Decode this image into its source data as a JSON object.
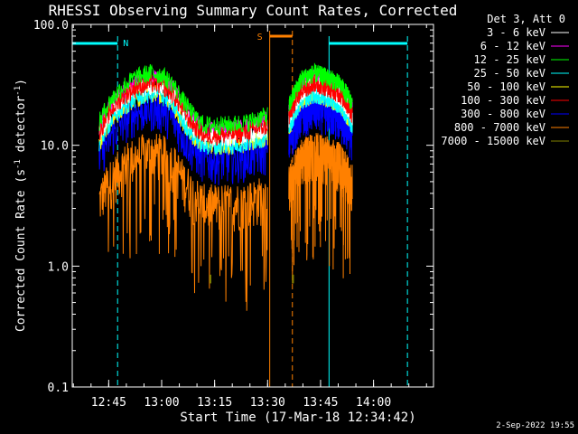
{
  "chart_data": {
    "type": "line",
    "title": "RHESSI Observing Summary Count Rates, Corrected",
    "xlabel": "Start Time (17-Mar-18 12:34:42)",
    "ylabel_main": "Corrected Count Rate (s",
    "ylabel_sup1": "-1",
    "ylabel_mid": " detector",
    "ylabel_sup2": "-1",
    "ylabel_end": ")",
    "yscale": "log",
    "ylim": [
      0.1,
      100
    ],
    "xlim": [
      12.578,
      14.283
    ],
    "yticks": [
      {
        "value": 100,
        "label": "100.0"
      },
      {
        "value": 10,
        "label": "10.0"
      },
      {
        "value": 1,
        "label": "1.0"
      },
      {
        "value": 0.1,
        "label": "0.1"
      }
    ],
    "xticks": [
      {
        "value": 12.75,
        "label": "12:45"
      },
      {
        "value": 13.0,
        "label": "13:00"
      },
      {
        "value": 13.25,
        "label": "13:15"
      },
      {
        "value": 13.5,
        "label": "13:30"
      },
      {
        "value": 13.75,
        "label": "13:45"
      },
      {
        "value": 14.0,
        "label": "14:00"
      }
    ],
    "legend_title": "Det 3, Att 0",
    "legend_position": "top-right",
    "series": [
      {
        "name": "3 - 6 keV",
        "color": "#ffffff",
        "offset": 1.18
      },
      {
        "name": "6 - 12 keV",
        "color": "#ff00ff",
        "offset": 1.35
      },
      {
        "name": "12 - 25 keV",
        "color": "#00ff00",
        "offset": 1.48
      },
      {
        "name": "25 - 50 keV",
        "color": "#00ffff",
        "offset": 1.0
      },
      {
        "name": "50 - 100 keV",
        "color": "#ffff00",
        "offset": 1.0
      },
      {
        "name": "100 - 300 keV",
        "color": "#ff0000",
        "offset": 1.22
      },
      {
        "name": "300 - 800 keV",
        "color": "#0000ff",
        "offset": 0.78
      },
      {
        "name": "800 - 7000 keV",
        "color": "#ff8000",
        "offset": 0.33
      },
      {
        "name": "7000 - 15000 keV",
        "color": "#808000",
        "offset": 0.0
      }
    ],
    "segments": [
      {
        "start": 12.705,
        "end": 13.5,
        "profile": [
          [
            12.705,
            10.5
          ],
          [
            12.75,
            15
          ],
          [
            12.82,
            21
          ],
          [
            12.88,
            25
          ],
          [
            12.95,
            27
          ],
          [
            13.0,
            26
          ],
          [
            13.05,
            22
          ],
          [
            13.1,
            16
          ],
          [
            13.15,
            12
          ],
          [
            13.2,
            10
          ],
          [
            13.3,
            10
          ],
          [
            13.4,
            10.5
          ],
          [
            13.5,
            12
          ]
        ]
      },
      {
        "start": 13.6,
        "end": 13.9,
        "profile": [
          [
            13.6,
            14
          ],
          [
            13.66,
            24
          ],
          [
            13.72,
            27
          ],
          [
            13.78,
            25
          ],
          [
            13.84,
            22
          ],
          [
            13.9,
            15
          ]
        ]
      }
    ],
    "annotations": {
      "north_marker": "N",
      "saa_marker": "S",
      "night_bands": [
        [
          12.578,
          12.792
        ],
        [
          13.79,
          14.16
        ]
      ],
      "saa_band": [
        13.51,
        13.617
      ],
      "night_dash_lines": [
        12.792,
        14.16
      ],
      "night_solid_lines": [
        12.578,
        13.79
      ],
      "saa_solid_line": 13.51,
      "saa_dash_line": 13.617
    },
    "grid": false
  },
  "timestamp": "2-Sep-2022 19:55",
  "colors": {
    "background": "#000000",
    "axes": "#ffffff",
    "night": "#00ffff",
    "saa": "#ff8000"
  }
}
